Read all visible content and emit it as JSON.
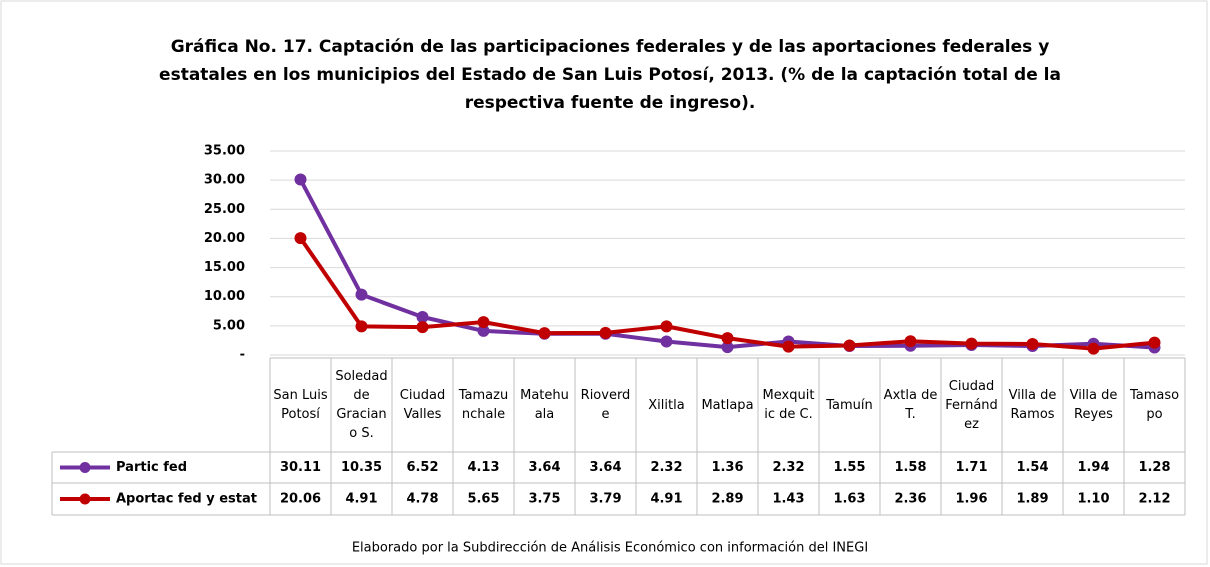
{
  "chart_data": {
    "type": "line",
    "title": [
      "Gráfica No. 17. Captación de las participaciones federales y de las aportaciones federales y",
      "estatales en los municipios del Estado de San Luis Potosí, 2013. (% de la captación total de la",
      "respectiva fuente de ingreso)."
    ],
    "footer": "Elaborado por la Subdirección de Análisis Económico con información del INEGI",
    "categories": [
      "San Luis Potosí",
      "Soledad de Graciano S.",
      "Ciudad Valles",
      "Tamazunchale",
      "Matehuala",
      "Rioverde",
      "Xilitla",
      "Matlapa",
      "Mexquitic de C.",
      "Tamuín",
      "Axtla de T.",
      "Ciudad Fernández",
      "Villa de Ramos",
      "Villa de Reyes",
      "Tamasopo"
    ],
    "series": [
      {
        "name": "Partic fed",
        "color": "#7030a0",
        "values": [
          30.11,
          10.35,
          6.52,
          4.13,
          3.64,
          3.64,
          2.32,
          1.36,
          2.32,
          1.55,
          1.58,
          1.71,
          1.54,
          1.94,
          1.28
        ],
        "value_labels": [
          "30.11",
          "10.35",
          "6.52",
          "4.13",
          "3.64",
          "3.64",
          "2.32",
          "1.36",
          "2.32",
          "1.55",
          "1.58",
          "1.71",
          "1.54",
          "1.94",
          "1.28"
        ]
      },
      {
        "name": "Aportac fed y estat",
        "color": "#c00000",
        "values": [
          20.06,
          4.91,
          4.78,
          5.65,
          3.75,
          3.79,
          4.91,
          2.89,
          1.43,
          1.63,
          2.36,
          1.96,
          1.89,
          1.1,
          2.12
        ],
        "value_labels": [
          "20.06",
          "4.91",
          "4.78",
          "5.65",
          "3.75",
          "3.79",
          "4.91",
          "2.89",
          "1.43",
          "1.63",
          "2.36",
          "1.96",
          "1.89",
          "1.10",
          "2.12"
        ]
      }
    ],
    "ylim": [
      0,
      35
    ],
    "yticks": [
      {
        "value": 0,
        "label": "-"
      },
      {
        "value": 5,
        "label": "5.00"
      },
      {
        "value": 10,
        "label": "10.00"
      },
      {
        "value": 15,
        "label": "15.00"
      },
      {
        "value": 20,
        "label": "20.00"
      },
      {
        "value": 25,
        "label": "25.00"
      },
      {
        "value": 30,
        "label": "30.00"
      },
      {
        "value": 35,
        "label": "35.00"
      }
    ],
    "grid": true
  }
}
